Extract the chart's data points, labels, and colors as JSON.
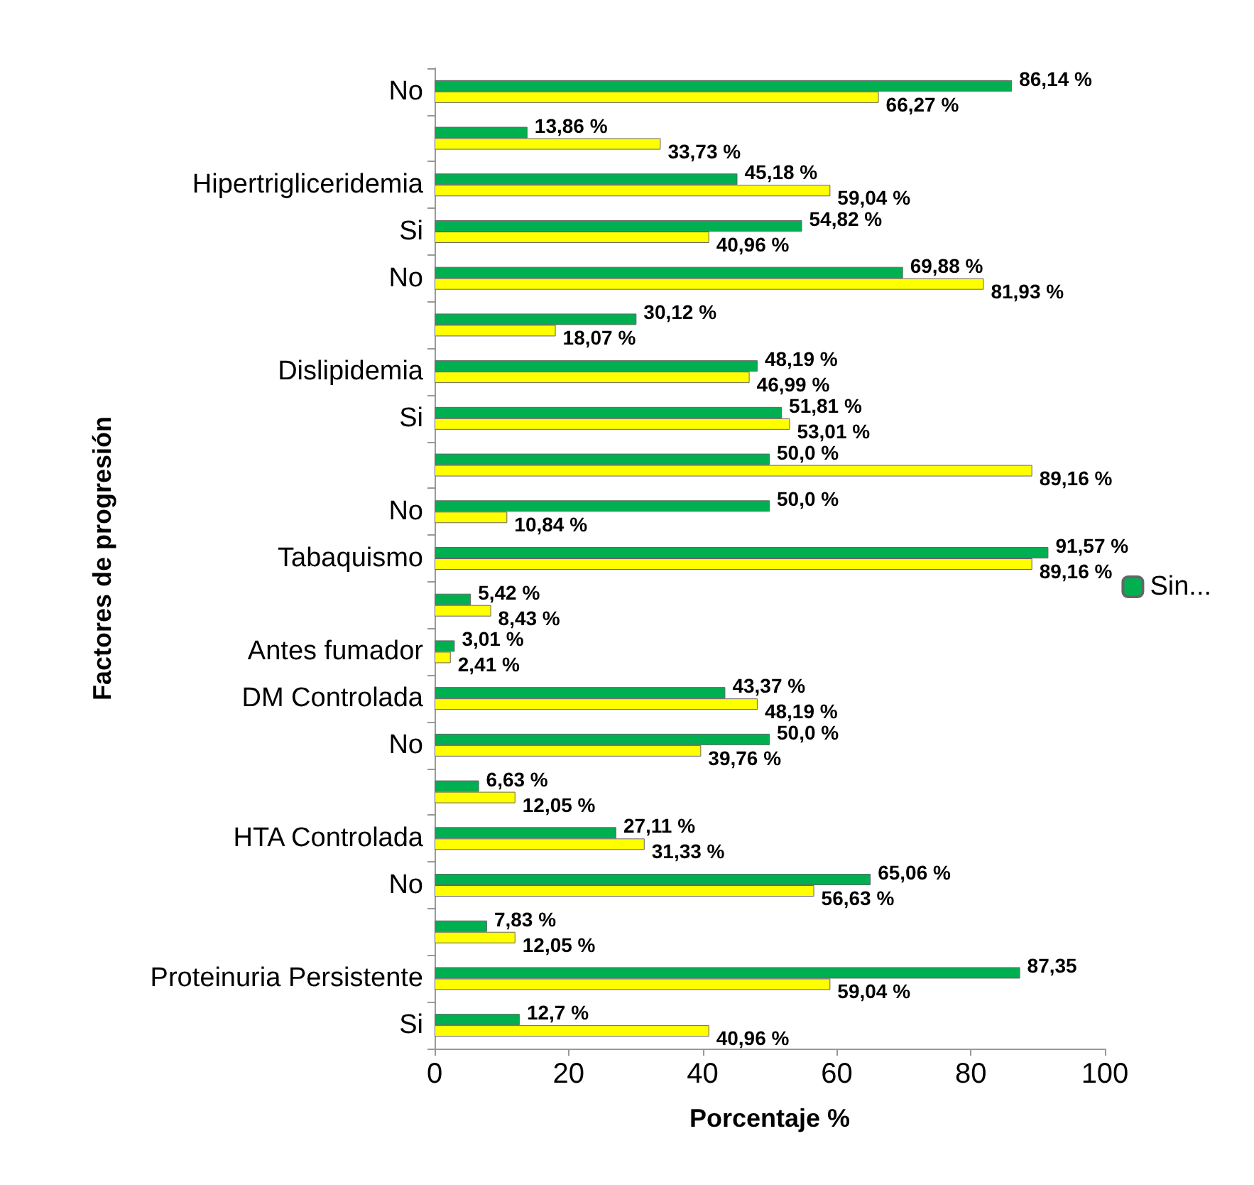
{
  "chart_data": {
    "type": "bar",
    "orientation": "horizontal",
    "ylabel": "Factores de progresión",
    "xlabel": "Porcentaje %",
    "categories": [
      "No",
      null,
      "Hipertrigliceridemia",
      "Si",
      "No",
      null,
      "Dislipidemia",
      "Si",
      null,
      "No",
      "Tabaquismo",
      null,
      "Antes fumador",
      "DM Controlada",
      "No",
      null,
      "HTA Controlada",
      "No",
      null,
      "Proteinuria Persistente",
      "Si"
    ],
    "series": [
      {
        "name": "Sin...",
        "color": "#00b050",
        "values": [
          86.14,
          13.86,
          45.18,
          54.82,
          69.88,
          30.12,
          48.19,
          51.81,
          50.0,
          50.0,
          91.57,
          5.42,
          3.01,
          43.37,
          50.0,
          6.63,
          27.11,
          65.06,
          7.83,
          87.35,
          12.7
        ],
        "value_labels": [
          "86,14 %",
          "13,86 %",
          "45,18 %",
          "54,82 %",
          "69,88 %",
          "30,12 %",
          "48,19 %",
          "51,81 %",
          "50,0 %",
          "50,0 %",
          "91,57 %",
          "5,42 %",
          "3,01 %",
          "43,37 %",
          "50,0 %",
          "6,63 %",
          "27,11 %",
          "65,06 %",
          "7,83 %",
          "87,35",
          "12,7 %"
        ]
      },
      {
        "color": "#ffff00",
        "values": [
          66.27,
          33.73,
          59.04,
          40.96,
          81.93,
          18.07,
          46.99,
          53.01,
          89.16,
          10.84,
          89.16,
          8.43,
          2.41,
          48.19,
          39.76,
          12.05,
          31.33,
          56.63,
          12.05,
          59.04,
          40.96
        ],
        "value_labels": [
          "66,27 %",
          "33,73 %",
          "59,04 %",
          "40,96 %",
          "81,93 %",
          "18,07 %",
          "46,99 %",
          "53,01 %",
          "89,16 %",
          "10,84 %",
          "89,16 %",
          "8,43 %",
          "2,41 %",
          "48,19 %",
          "39,76 %",
          "12,05 %",
          "31,33 %",
          "56,63 %",
          "12,05 %",
          "59,04 %",
          "40,96 %"
        ]
      }
    ],
    "xlim": [
      0,
      100
    ],
    "xticks": [
      0,
      20,
      40,
      60,
      80,
      100
    ],
    "legend": "right"
  }
}
